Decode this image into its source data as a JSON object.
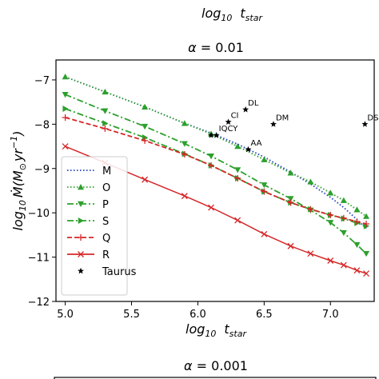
{
  "top_cut_xlabel": {
    "log": "log",
    "sub": "10",
    "t": "t",
    "tsub": "star"
  },
  "bottom_title": {
    "prefix": "α = ",
    "value": "0.001"
  },
  "chart_data": {
    "type": "line",
    "title": {
      "prefix": "α = ",
      "value": "0.01"
    },
    "xlabel": {
      "log": "log",
      "sub": "10",
      "t": "t",
      "tsub": "star"
    },
    "ylabel": {
      "log": "log",
      "sub": "10",
      "body": "Ṁ(M",
      "sun": "⊙",
      "yr": "yr",
      "exp": "−1",
      "close": ")"
    },
    "xlim": [
      4.93,
      7.33
    ],
    "ylim": [
      -12,
      -6.55
    ],
    "xticks": [
      "5.0",
      "5.5",
      "6.0",
      "6.5",
      "7.0"
    ],
    "yticks": [
      "−7",
      "−8",
      "−9",
      "−10",
      "−11",
      "−12"
    ],
    "grid": false,
    "legend_position": "lower-left",
    "series": [
      {
        "name": "M",
        "color": "#1f3fbf",
        "style": "dotted",
        "marker": "none",
        "x": [
          5.0,
          5.3,
          5.6,
          5.9,
          6.1,
          6.3,
          6.5,
          6.7,
          6.85,
          7.0,
          7.1,
          7.2,
          7.27
        ],
        "y": [
          -6.93,
          -7.27,
          -7.61,
          -7.98,
          -8.2,
          -8.45,
          -8.74,
          -9.08,
          -9.35,
          -9.65,
          -9.88,
          -10.15,
          -10.35
        ]
      },
      {
        "name": "O",
        "color": "#2ca02c",
        "style": "dotted",
        "marker": "triangle-up",
        "x": [
          5.0,
          5.3,
          5.6,
          5.9,
          6.1,
          6.3,
          6.5,
          6.7,
          6.85,
          7.0,
          7.1,
          7.2,
          7.27
        ],
        "y": [
          -6.93,
          -7.27,
          -7.61,
          -7.98,
          -8.22,
          -8.5,
          -8.8,
          -9.1,
          -9.3,
          -9.55,
          -9.72,
          -9.93,
          -10.08
        ]
      },
      {
        "name": "P",
        "color": "#2ca02c",
        "style": "dashdot",
        "marker": "triangle-down",
        "x": [
          5.0,
          5.3,
          5.6,
          5.9,
          6.1,
          6.3,
          6.5,
          6.7,
          6.85,
          7.0,
          7.1,
          7.2,
          7.27
        ],
        "y": [
          -7.33,
          -7.7,
          -8.05,
          -8.44,
          -8.72,
          -9.03,
          -9.37,
          -9.68,
          -9.94,
          -10.22,
          -10.45,
          -10.72,
          -10.92
        ]
      },
      {
        "name": "S",
        "color": "#2ca02c",
        "style": "dashdot",
        "marker": "triangle-right",
        "x": [
          5.0,
          5.3,
          5.6,
          5.9,
          6.1,
          6.3,
          6.5,
          6.7,
          6.85,
          7.0,
          7.1,
          7.2,
          7.27
        ],
        "y": [
          -7.65,
          -7.98,
          -8.3,
          -8.67,
          -8.93,
          -9.22,
          -9.52,
          -9.77,
          -9.92,
          -10.05,
          -10.13,
          -10.23,
          -10.3
        ]
      },
      {
        "name": "Q",
        "color": "#d62728",
        "style": "dashed",
        "marker": "plus",
        "x": [
          5.0,
          5.3,
          5.6,
          5.9,
          6.1,
          6.3,
          6.5,
          6.7,
          6.85,
          7.0,
          7.1,
          7.2,
          7.27
        ],
        "y": [
          -7.85,
          -8.1,
          -8.37,
          -8.68,
          -8.93,
          -9.22,
          -9.52,
          -9.77,
          -9.92,
          -10.05,
          -10.12,
          -10.2,
          -10.25
        ]
      },
      {
        "name": "R",
        "color": "#d62728",
        "style": "solid",
        "marker": "x",
        "x": [
          5.0,
          5.3,
          5.6,
          5.9,
          6.1,
          6.3,
          6.5,
          6.7,
          6.85,
          7.0,
          7.1,
          7.2,
          7.27
        ],
        "y": [
          -8.5,
          -8.87,
          -9.25,
          -9.62,
          -9.88,
          -10.17,
          -10.48,
          -10.75,
          -10.92,
          -11.08,
          -11.18,
          -11.3,
          -11.37
        ]
      },
      {
        "name": "Taurus",
        "color": "#000000",
        "style": "none",
        "marker": "star",
        "x": [
          6.1,
          6.14,
          6.23,
          6.36,
          6.38,
          6.57,
          7.26
        ],
        "y": [
          -8.25,
          -8.25,
          -7.95,
          -7.67,
          -8.57,
          -8.0,
          -8.0
        ],
        "labels": [
          "",
          "IQCY",
          "CI",
          "DL",
          "AA",
          "DM",
          "DS"
        ]
      }
    ]
  }
}
